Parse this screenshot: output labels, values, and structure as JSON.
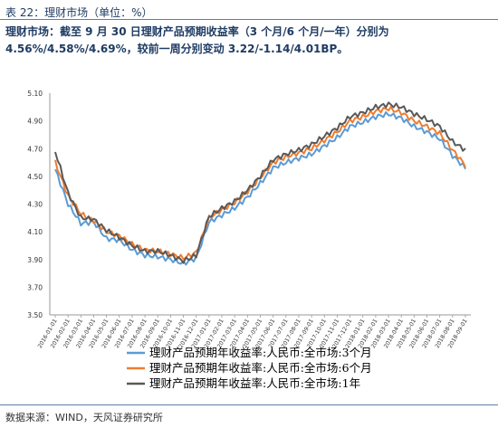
{
  "header": {
    "table_title": "表 22：理财市场（单位：%）",
    "headline": "理财市场：截至 9 月 30 日理财产品预期收益率（3 个月/6 个月/一年）分别为 4.56%/4.58%/4.69%，较前一周分别变动 3.22/-1.14/4.01BP。"
  },
  "footer": {
    "source": "数据来源：WIND，天风证券研究所"
  },
  "chart_data": {
    "type": "line",
    "title": "",
    "xlabel": "",
    "ylabel": "",
    "ylim": [
      3.5,
      5.1
    ],
    "yticks": [
      "5.10",
      "4.90",
      "4.70",
      "4.50",
      "4.30",
      "4.10",
      "3.90",
      "3.70",
      "3.50"
    ],
    "grid": false,
    "legend_position": "bottom",
    "x_tick_labels": [
      "2016-01-01",
      "2016-02-01",
      "2016-03-01",
      "2016-04-01",
      "2016-05-01",
      "2016-06-01",
      "2016-07-01",
      "2016-08-01",
      "2016-09-01",
      "2016-10-01",
      "2016-11-01",
      "2016-12-01",
      "2017-01-01",
      "2017-02-01",
      "2017-03-01",
      "2017-04-01",
      "2017-05-01",
      "2017-06-01",
      "2017-07-01",
      "2017-08-01",
      "2017-09-01",
      "2017-10-01",
      "2017-11-01",
      "2017-12-01",
      "2018-01-01",
      "2018-02-01",
      "2018-03-01",
      "2018-04-01",
      "2018-05-01",
      "2018-06-01",
      "2018-07-01",
      "2018-08-01",
      "2018-09-01"
    ],
    "x": [
      "2016-01",
      "2016-02",
      "2016-03",
      "2016-04",
      "2016-05",
      "2016-06",
      "2016-07",
      "2016-08",
      "2016-09",
      "2016-10",
      "2016-11",
      "2016-12",
      "2017-01",
      "2017-02",
      "2017-03",
      "2017-04",
      "2017-05",
      "2017-06",
      "2017-07",
      "2017-08",
      "2017-09",
      "2017-10",
      "2017-11",
      "2017-12",
      "2018-01",
      "2018-02",
      "2018-03",
      "2018-04",
      "2018-05",
      "2018-06",
      "2018-07",
      "2018-08",
      "2018-09"
    ],
    "series": [
      {
        "name": "理财产品预期年收益率:人民币:全市场:3个月",
        "color": "#5b9bd5",
        "values": [
          4.55,
          4.3,
          4.16,
          4.17,
          4.05,
          4.04,
          3.97,
          3.93,
          3.92,
          3.9,
          3.87,
          3.91,
          4.17,
          4.22,
          4.27,
          4.35,
          4.45,
          4.56,
          4.6,
          4.63,
          4.66,
          4.72,
          4.78,
          4.86,
          4.89,
          4.93,
          4.95,
          4.92,
          4.86,
          4.82,
          4.77,
          4.65,
          4.56
        ]
      },
      {
        "name": "理财产品预期年收益率:人民币:全市场:6个月",
        "color": "#ed7d31",
        "values": [
          4.6,
          4.36,
          4.23,
          4.18,
          4.1,
          4.07,
          4.01,
          3.97,
          3.96,
          3.94,
          3.91,
          3.95,
          4.2,
          4.26,
          4.31,
          4.39,
          4.49,
          4.6,
          4.64,
          4.67,
          4.7,
          4.76,
          4.82,
          4.9,
          4.93,
          4.97,
          4.99,
          4.96,
          4.9,
          4.86,
          4.81,
          4.69,
          4.58
        ]
      },
      {
        "name": "理财产品预期年收益率:人民币:全市场:1年",
        "color": "#595959",
        "values": [
          4.68,
          4.38,
          4.2,
          4.19,
          4.11,
          4.06,
          4.0,
          3.96,
          3.96,
          3.93,
          3.89,
          3.93,
          4.21,
          4.27,
          4.32,
          4.4,
          4.5,
          4.62,
          4.66,
          4.69,
          4.73,
          4.79,
          4.85,
          4.93,
          4.96,
          5.0,
          5.02,
          5.0,
          4.95,
          4.91,
          4.86,
          4.75,
          4.69
        ]
      }
    ]
  }
}
